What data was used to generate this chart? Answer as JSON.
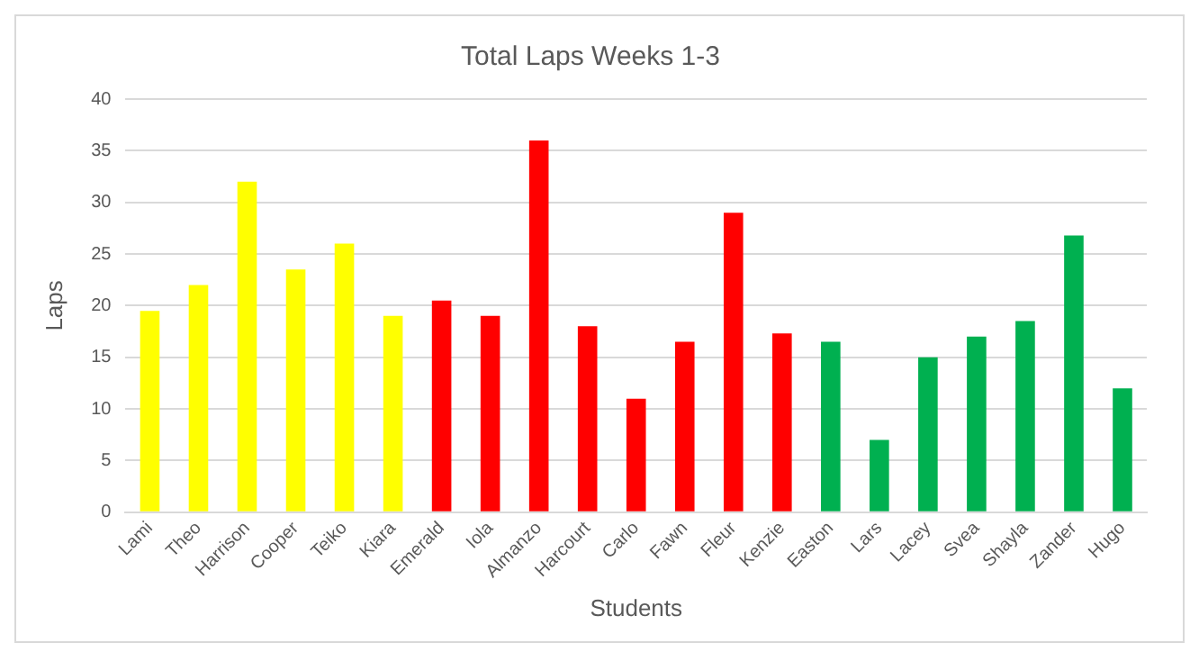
{
  "chart_data": {
    "type": "bar",
    "title": "Total Laps Weeks 1-3",
    "xlabel": "Students",
    "ylabel": "Laps",
    "categories": [
      "Lami",
      "Theo",
      "Harrison",
      "Cooper",
      "Teiko",
      "Kiara",
      "Emerald",
      "Iola",
      "Almanzo",
      "Harcourt",
      "Carlo",
      "Fawn",
      "Fleur",
      "Kenzie",
      "Easton",
      "Lars",
      "Lacey",
      "Svea",
      "Shayla",
      "Zander",
      "Hugo"
    ],
    "values": [
      19.5,
      22,
      32,
      23.5,
      26,
      19,
      20.5,
      19,
      36,
      18,
      11,
      16.5,
      29,
      17.3,
      16.5,
      7,
      15,
      17,
      18.5,
      26.8,
      12
    ],
    "colors": [
      "#ffff00",
      "#ffff00",
      "#ffff00",
      "#ffff00",
      "#ffff00",
      "#ffff00",
      "#ff0000",
      "#ff0000",
      "#ff0000",
      "#ff0000",
      "#ff0000",
      "#ff0000",
      "#ff0000",
      "#ff0000",
      "#00b050",
      "#00b050",
      "#00b050",
      "#00b050",
      "#00b050",
      "#00b050",
      "#00b050"
    ],
    "ylim": [
      0,
      40
    ],
    "yticks": [
      0,
      5,
      10,
      15,
      20,
      25,
      30,
      35,
      40
    ],
    "grid": "y",
    "legend": false
  }
}
